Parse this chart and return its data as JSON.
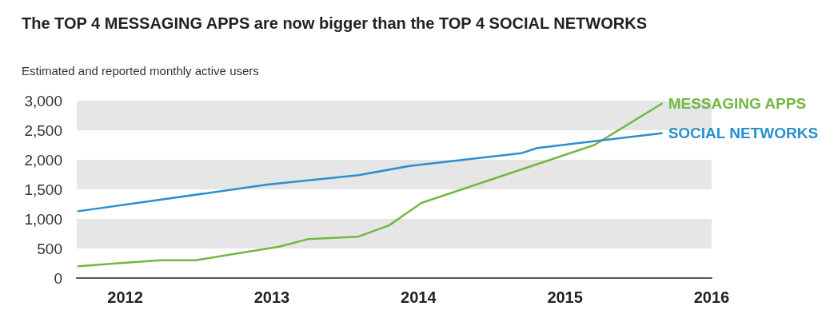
{
  "chart_data": {
    "type": "line",
    "title": "The TOP 4 MESSAGING APPS are now bigger than the TOP 4 SOCIAL NETWORKS",
    "subtitle": "Estimated and reported monthly active users",
    "series": [
      {
        "name": "MESSAGING APPS",
        "color": "#72b843",
        "x": [
          2011.68,
          2011.95,
          2012.24,
          2012.48,
          2012.72,
          2013.05,
          2013.25,
          2013.59,
          2013.8,
          2013.95,
          2014.02,
          2015.2,
          2015.66
        ],
        "values": [
          200,
          250,
          300,
          300,
          400,
          530,
          660,
          700,
          890,
          1150,
          1270,
          2250,
          2950
        ]
      },
      {
        "name": "SOCIAL NETWORKS",
        "color": "#2b8fcf",
        "x": [
          2011.68,
          2012.97,
          2013.59,
          2013.95,
          2014.7,
          2014.81,
          2015.66
        ],
        "values": [
          1130,
          1580,
          1740,
          1900,
          2110,
          2200,
          2450
        ]
      }
    ],
    "xlim": [
      2011.67,
      2016
    ],
    "xticks": [
      2012,
      2013,
      2014,
      2015,
      2016
    ],
    "ylim": [
      0,
      3000
    ],
    "yticks": [
      0,
      500,
      {
        "value": 1000,
        "label": "1,000"
      },
      {
        "value": 1500,
        "label": "1,500"
      },
      {
        "value": 2000,
        "label": "2,000"
      },
      {
        "value": 2500,
        "label": "2,500"
      },
      {
        "value": 3000,
        "label": "3,000"
      }
    ],
    "bands": [
      {
        "axis": "y",
        "from": 500,
        "to": 1000,
        "color": "#e6e6e6"
      },
      {
        "axis": "y",
        "from": 1500,
        "to": 2000,
        "color": "#e6e6e6"
      },
      {
        "axis": "y",
        "from": 2500,
        "to": 3000,
        "color": "#e6e6e6"
      }
    ],
    "grid": false,
    "legend": false,
    "marker": "none",
    "line_style": "solid"
  }
}
